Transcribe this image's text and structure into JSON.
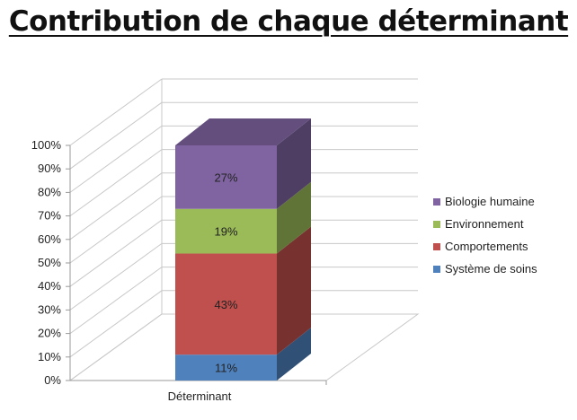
{
  "chart_data": {
    "type": "bar",
    "title": "Contribution de chaque déterminant",
    "categories": [
      "Déterminant"
    ],
    "series": [
      {
        "name": "Système de soins",
        "values": [
          11
        ],
        "label": "11%",
        "color": "#4f81bd"
      },
      {
        "name": "Comportements",
        "values": [
          43
        ],
        "label": "43%",
        "color": "#c0504d"
      },
      {
        "name": "Environnement",
        "values": [
          19
        ],
        "label": "19%",
        "color": "#9bbb59"
      },
      {
        "name": "Biologie humaine",
        "values": [
          27
        ],
        "label": "27%",
        "color": "#8064a2"
      }
    ],
    "stacked": true,
    "percent_stacked": true,
    "ylim": [
      0,
      100
    ],
    "yticks": [
      "0%",
      "10%",
      "20%",
      "30%",
      "40%",
      "50%",
      "60%",
      "70%",
      "80%",
      "90%",
      "100%"
    ],
    "xlabel": "",
    "ylabel": "",
    "grid": true,
    "legend_position": "right",
    "legend_order": [
      "Biologie humaine",
      "Environnement",
      "Comportements",
      "Système de soins"
    ]
  }
}
